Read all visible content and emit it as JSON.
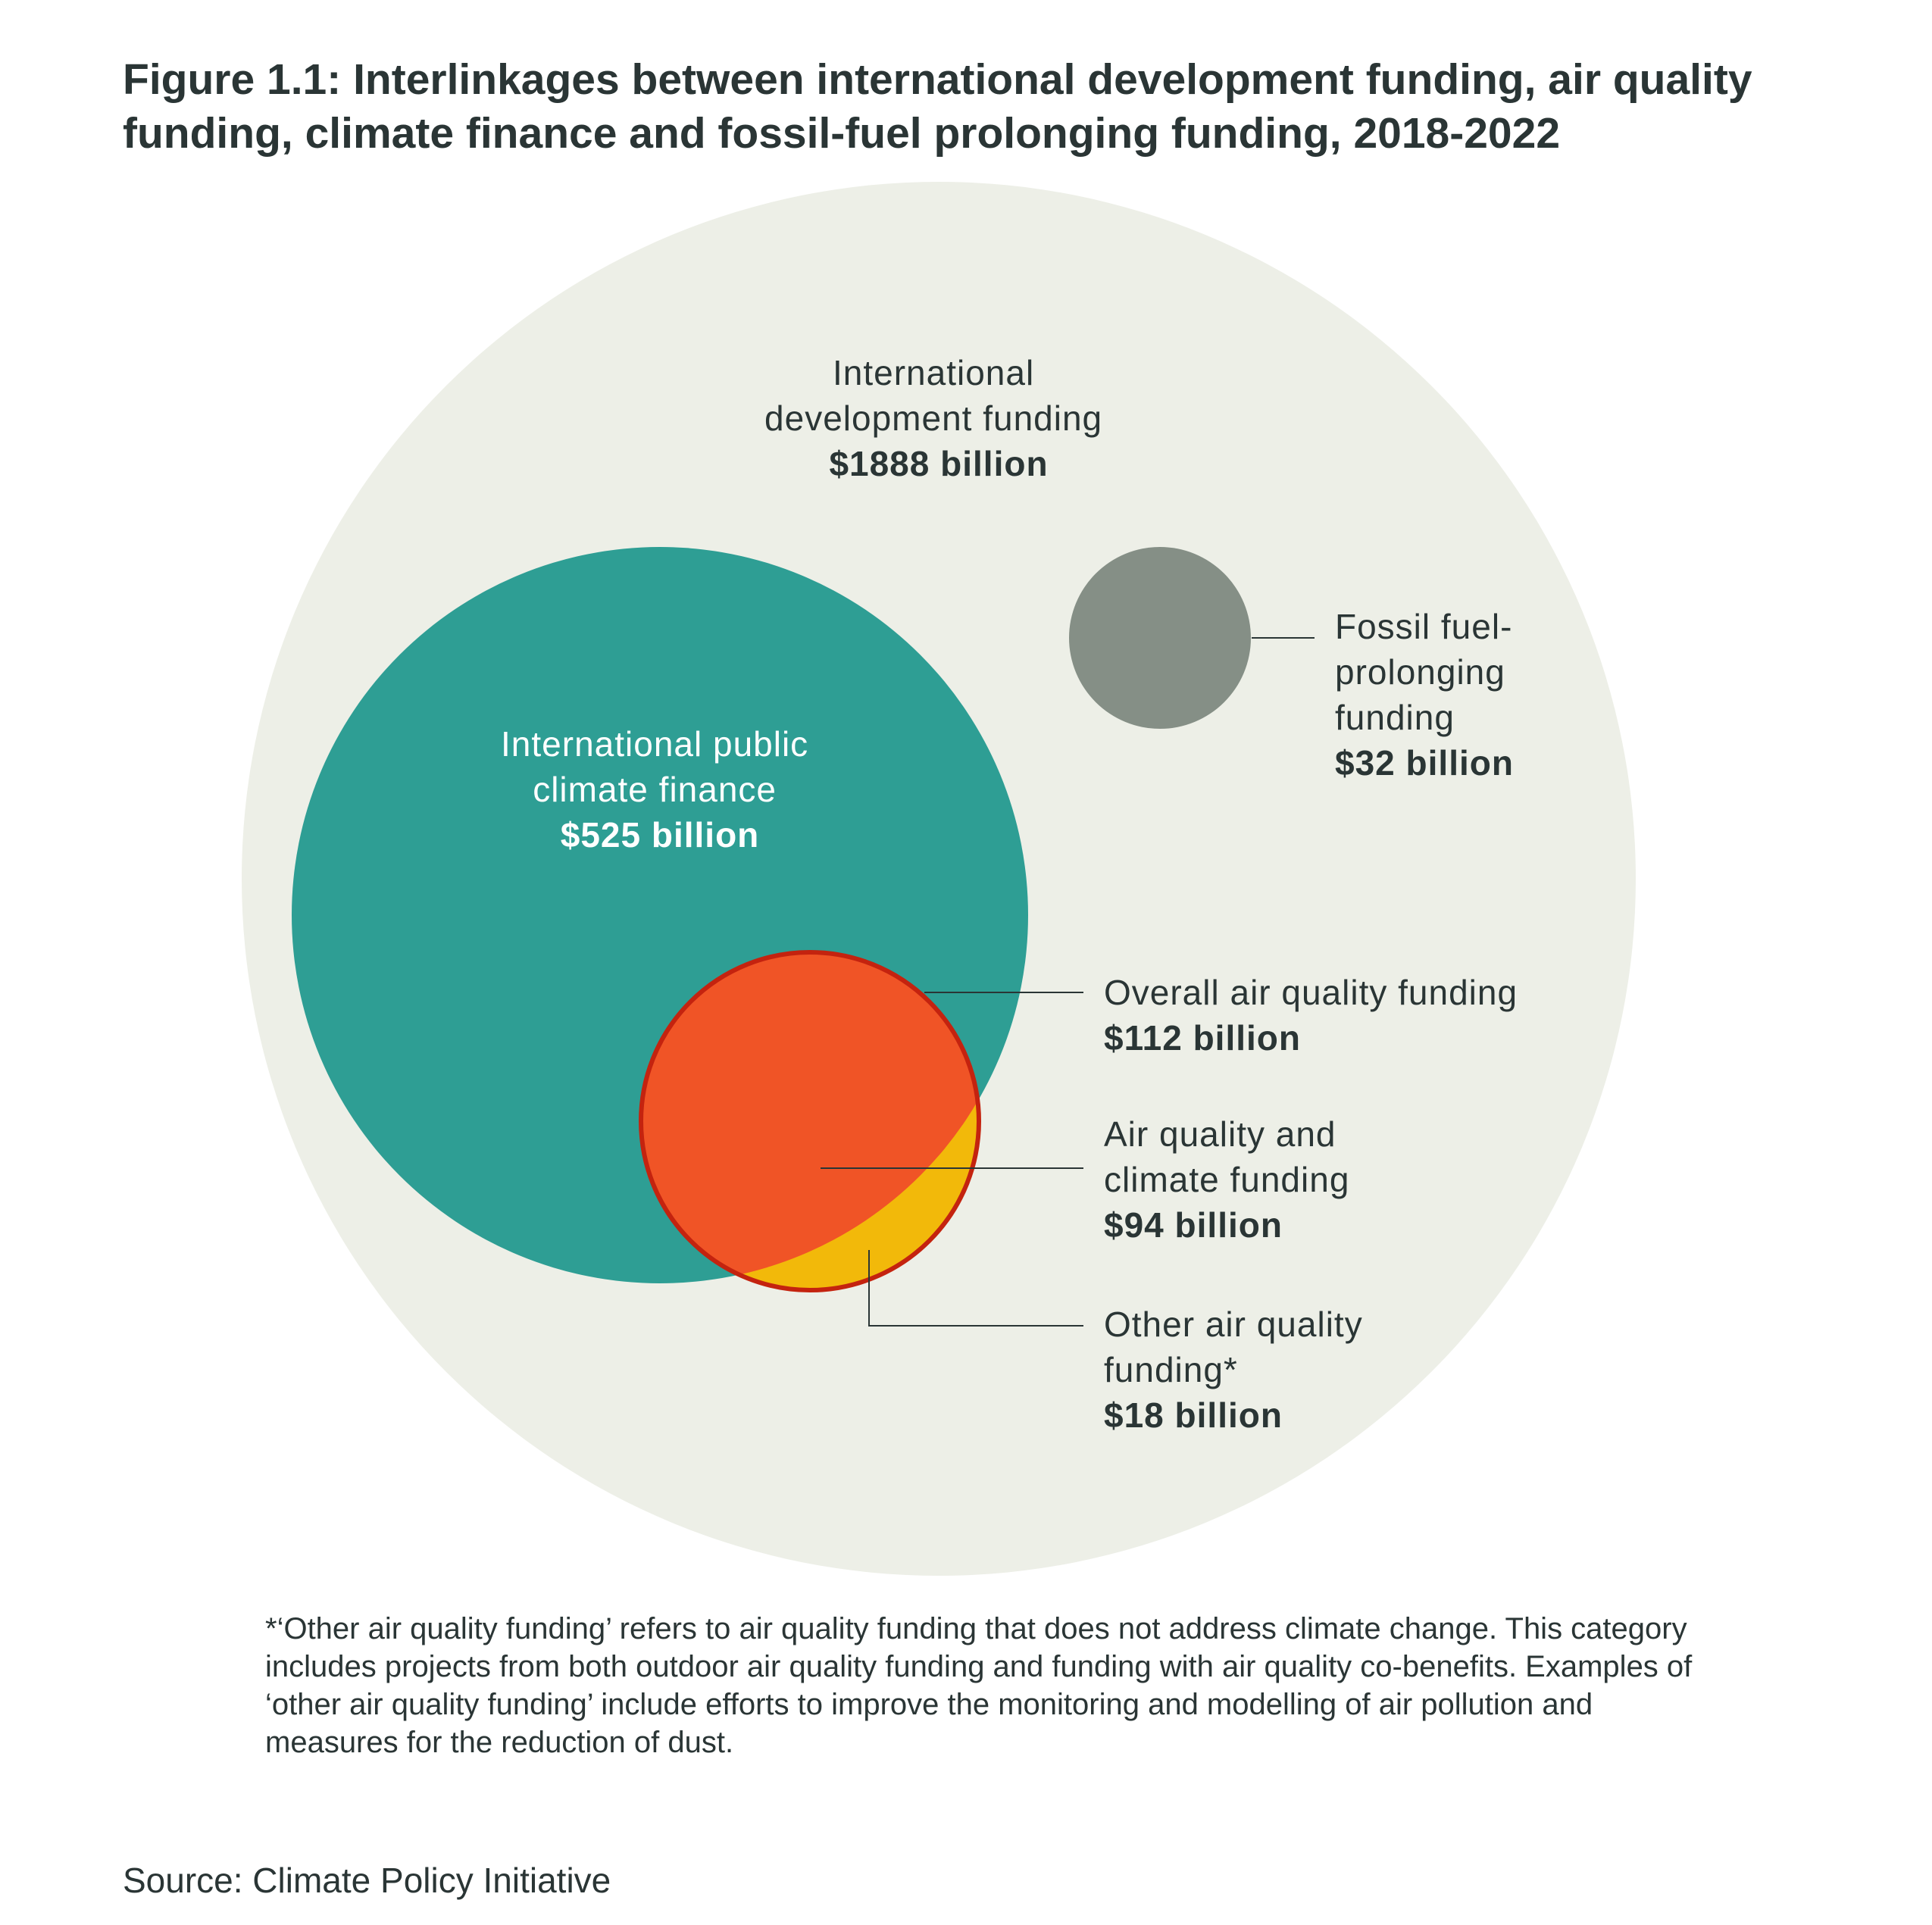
{
  "title": "Figure 1.1: Interlinkages between international development funding, air quality funding, climate finance and fossil-fuel prolonging funding, 2018-2022",
  "colors": {
    "development": "#edefe7",
    "climate": "#2e9e94",
    "fossil": "#858f86",
    "air_quality": "#f05426",
    "air_quality_outline": "#c4230f",
    "other_air": "#f2b90a",
    "leader": "#2a3535",
    "text": "#2a3535"
  },
  "categories": [
    {
      "name_lines": [
        "International",
        "development funding"
      ],
      "value": "$1888 billion"
    },
    {
      "name_lines": [
        "International public",
        "climate finance"
      ],
      "value": "$525 billion"
    },
    {
      "name_lines": [
        "Fossil fuel-",
        "prolonging",
        "funding"
      ],
      "value": "$32 billion"
    },
    {
      "name_lines": [
        "Overall air quality funding"
      ],
      "value": "$112 billion"
    },
    {
      "name_lines": [
        "Air quality and",
        "climate funding"
      ],
      "value": "$94 billion"
    },
    {
      "name_lines": [
        "Other air quality",
        "funding*"
      ],
      "value": "$18 billion"
    }
  ],
  "footnote": "*‘Other air quality funding’ refers to air quality funding that does not address climate change. This category includes projects from both outdoor air quality funding and funding with air quality co-benefits. Examples of ‘other air quality funding’ include efforts to improve the monitoring and modelling of air pollution and measures for the reduction of dust.",
  "source": "Source: Climate Policy Initiative"
}
